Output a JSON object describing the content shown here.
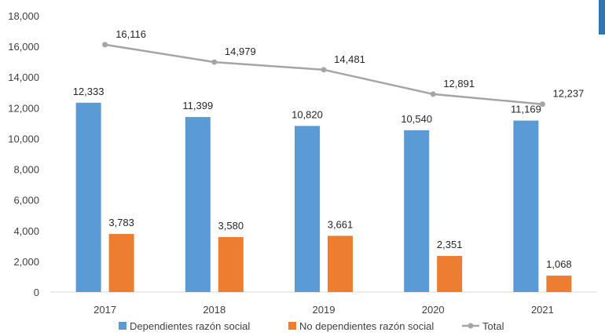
{
  "chart_data": {
    "type": "bar",
    "categories": [
      "2017",
      "2018",
      "2019",
      "2020",
      "2021"
    ],
    "series": [
      {
        "name": "Dependientes razón social",
        "kind": "bar",
        "color": "#5B9BD5",
        "values": [
          12333,
          11399,
          10820,
          10540,
          11169
        ],
        "labels": [
          "12,333",
          "11,399",
          "10,820",
          "10,540",
          "11,169"
        ]
      },
      {
        "name": "No dependientes razón social",
        "kind": "bar",
        "color": "#ED7D31",
        "values": [
          3783,
          3580,
          3661,
          2351,
          1068
        ],
        "labels": [
          "3,783",
          "3,580",
          "3,661",
          "2,351",
          "1,068"
        ]
      },
      {
        "name": "Total",
        "kind": "line",
        "color": "#A5A5A5",
        "values": [
          16116,
          14979,
          14481,
          12891,
          12237
        ],
        "labels": [
          "16,116",
          "14,979",
          "14,481",
          "12,891",
          "12,237"
        ]
      }
    ],
    "yticks": [
      "0",
      "2,000",
      "4,000",
      "6,000",
      "8,000",
      "10,000",
      "12,000",
      "14,000",
      "16,000",
      "18,000"
    ],
    "ylim": [
      0,
      18000
    ],
    "grid": false,
    "legend": "bottom",
    "accent_color": "#2E75B6"
  }
}
